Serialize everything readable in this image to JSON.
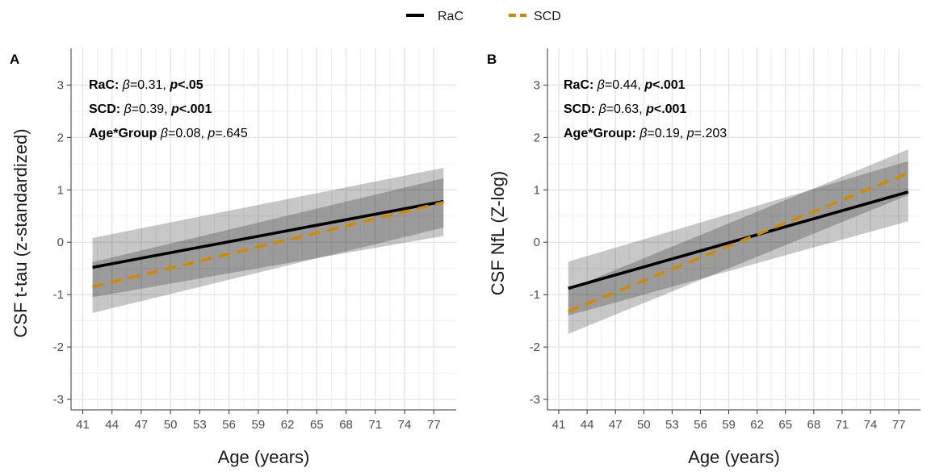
{
  "legend": {
    "items": [
      {
        "label": "RaC",
        "color": "#000000",
        "dash": "solid"
      },
      {
        "label": "SCD",
        "color": "#D08A00",
        "dash": "dashed"
      }
    ]
  },
  "chart_data": [
    {
      "type": "line",
      "panel_label": "A",
      "xlabel": "Age (years)",
      "ylabel": "CSF t-tau (z-standardized)",
      "xlim": [
        39.8,
        79.3
      ],
      "ylim": [
        -3.2,
        3.7
      ],
      "x_ticks": [
        "41",
        "44",
        "47",
        "50",
        "53",
        "56",
        "59",
        "62",
        "65",
        "68",
        "71",
        "74",
        "77"
      ],
      "y_ticks": [
        "-3",
        "-2",
        "-1",
        "0",
        "1",
        "2",
        "3"
      ],
      "grid": true,
      "series": [
        {
          "name": "RaC",
          "color": "#000000",
          "dash": "solid",
          "x": [
            42,
            78
          ],
          "y": [
            -0.48,
            0.78
          ],
          "ci_lower": [
            -1.05,
            0.12
          ],
          "ci_upper": [
            0.08,
            1.42
          ]
        },
        {
          "name": "SCD",
          "color": "#D08A00",
          "dash": "dashed",
          "x": [
            42,
            78
          ],
          "y": [
            -0.85,
            0.76
          ],
          "ci_lower": [
            -1.35,
            0.28
          ],
          "ci_upper": [
            -0.38,
            1.22
          ]
        }
      ],
      "annotations": [
        {
          "label": "RaC:",
          "beta": "0.31",
          "p_label": "p",
          "p_text": "<.05",
          "p_bold": true
        },
        {
          "label": "SCD:",
          "beta": "0.39",
          "p_label": "p",
          "p_text": "<.001",
          "p_bold": true
        },
        {
          "label": "Age*Group",
          "beta": "0.08",
          "p_label": "p",
          "p_text": "=.645",
          "p_bold": false
        }
      ]
    },
    {
      "type": "line",
      "panel_label": "B",
      "xlabel": "Age (years)",
      "ylabel": "CSF NfL (Z-log)",
      "xlim": [
        39.8,
        79.3
      ],
      "ylim": [
        -3.2,
        3.7
      ],
      "x_ticks": [
        "41",
        "44",
        "47",
        "50",
        "53",
        "56",
        "59",
        "62",
        "65",
        "68",
        "71",
        "74",
        "77"
      ],
      "y_ticks": [
        "-3",
        "-2",
        "-1",
        "0",
        "1",
        "2",
        "3"
      ],
      "grid": true,
      "series": [
        {
          "name": "RaC",
          "color": "#000000",
          "dash": "solid",
          "x": [
            42,
            78
          ],
          "y": [
            -0.88,
            0.96
          ],
          "ci_lower": [
            -1.4,
            0.4
          ],
          "ci_upper": [
            -0.37,
            1.55
          ]
        },
        {
          "name": "SCD",
          "color": "#D08A00",
          "dash": "dashed",
          "x": [
            42,
            78
          ],
          "y": [
            -1.32,
            1.32
          ],
          "ci_lower": [
            -1.75,
            0.9
          ],
          "ci_upper": [
            -0.9,
            1.77
          ]
        }
      ],
      "annotations": [
        {
          "label": "RaC:",
          "beta": "0.44",
          "p_label": "p",
          "p_text": "<.001",
          "p_bold": true
        },
        {
          "label": "SCD:",
          "beta": "0.63",
          "p_label": "p",
          "p_text": "<.001",
          "p_bold": true
        },
        {
          "label": "Age*Group:",
          "beta": "0.19",
          "p_label": "p",
          "p_text": "=.203",
          "p_bold": false
        }
      ]
    }
  ]
}
